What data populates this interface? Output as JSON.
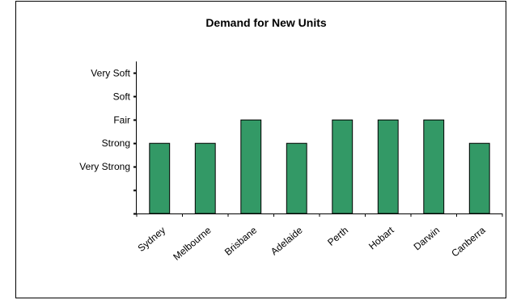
{
  "chart_data": {
    "type": "bar",
    "title": "Demand for New Units",
    "categories": [
      "Sydney",
      "Melbourne",
      "Brisbane",
      "Adelaide",
      "Perth",
      "Hobart",
      "Darwin",
      "Canberra"
    ],
    "values": [
      3,
      3,
      4,
      3,
      4,
      4,
      4,
      3
    ],
    "y_tick_labels": [
      "Very Strong",
      "Strong",
      "Fair",
      "Soft",
      "Very Soft"
    ],
    "y_tick_values": [
      2,
      3,
      4,
      5,
      6
    ],
    "ylim": [
      0,
      6.5
    ],
    "xlabel": "",
    "ylabel": "",
    "bar_color": "#339966",
    "grid": false,
    "legend": false
  }
}
